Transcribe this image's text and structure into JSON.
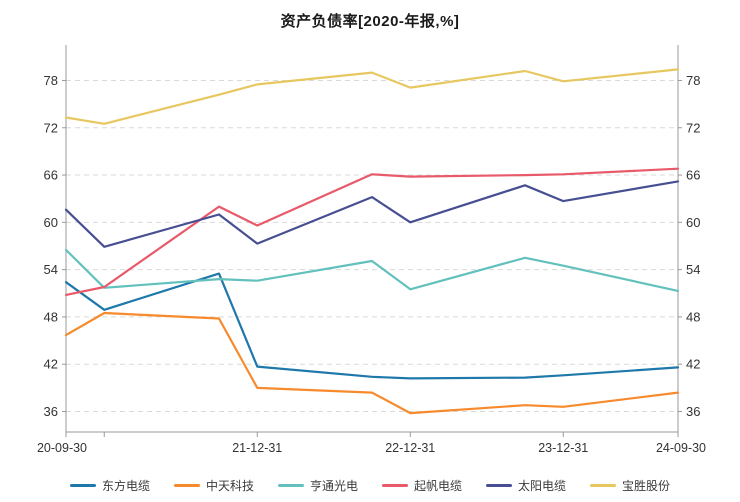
{
  "title": "资产负债率[2020-年报,%]",
  "colors": {
    "axis_line": "#999999",
    "grid_line": "#d9d9d9",
    "tick_text": "#333333",
    "title_text": "#1a1a1a"
  },
  "chart_data": {
    "type": "line",
    "title": "资产负债率[2020-年报,%]",
    "xlabel": "",
    "ylabel": "",
    "x": [
      "20-09-30",
      "20-12-31",
      "21-09-30",
      "21-12-31",
      "22-09-30",
      "22-12-31",
      "23-09-30",
      "23-12-31",
      "24-09-30"
    ],
    "x_month_offsets": [
      0,
      3,
      12,
      15,
      24,
      27,
      36,
      39,
      48
    ],
    "x_axis_labels": [
      "20-09-30",
      "21-12-31",
      "22-12-31",
      "23-12-31",
      "24-09-30"
    ],
    "x_axis_label_offsets": [
      0,
      15,
      27,
      39,
      48
    ],
    "x_tick_offsets": [
      0,
      3,
      15,
      27,
      39,
      48
    ],
    "y_ticks": [
      36,
      42,
      48,
      54,
      60,
      66,
      72,
      78
    ],
    "ylim": [
      33.4,
      82.5
    ],
    "grid": true,
    "legend_position": "bottom",
    "series": [
      {
        "name": "东方电缆",
        "color": "#1e78aa",
        "values": [
          52.4,
          48.9,
          53.5,
          41.7,
          40.4,
          40.2,
          40.3,
          40.6,
          41.6
        ]
      },
      {
        "name": "中天科技",
        "color": "#f68a2d",
        "values": [
          45.7,
          48.5,
          47.8,
          39.0,
          38.4,
          35.8,
          36.8,
          36.6,
          38.4
        ]
      },
      {
        "name": "亨通光电",
        "color": "#63c1bd",
        "values": [
          56.5,
          51.7,
          52.8,
          52.6,
          55.1,
          51.5,
          55.5,
          54.5,
          51.3
        ]
      },
      {
        "name": "起帆电缆",
        "color": "#e8596a",
        "values": [
          50.8,
          51.8,
          62.0,
          59.6,
          66.1,
          65.8,
          66.0,
          66.1,
          66.8
        ]
      },
      {
        "name": "太阳电缆",
        "color": "#474f92",
        "values": [
          61.6,
          56.9,
          61.0,
          57.3,
          63.2,
          60.0,
          64.7,
          62.7,
          65.2
        ]
      },
      {
        "name": "宝胜股份",
        "color": "#e7c75f",
        "values": [
          73.3,
          72.5,
          76.2,
          77.5,
          79.0,
          77.1,
          79.2,
          77.9,
          79.4
        ]
      }
    ]
  }
}
